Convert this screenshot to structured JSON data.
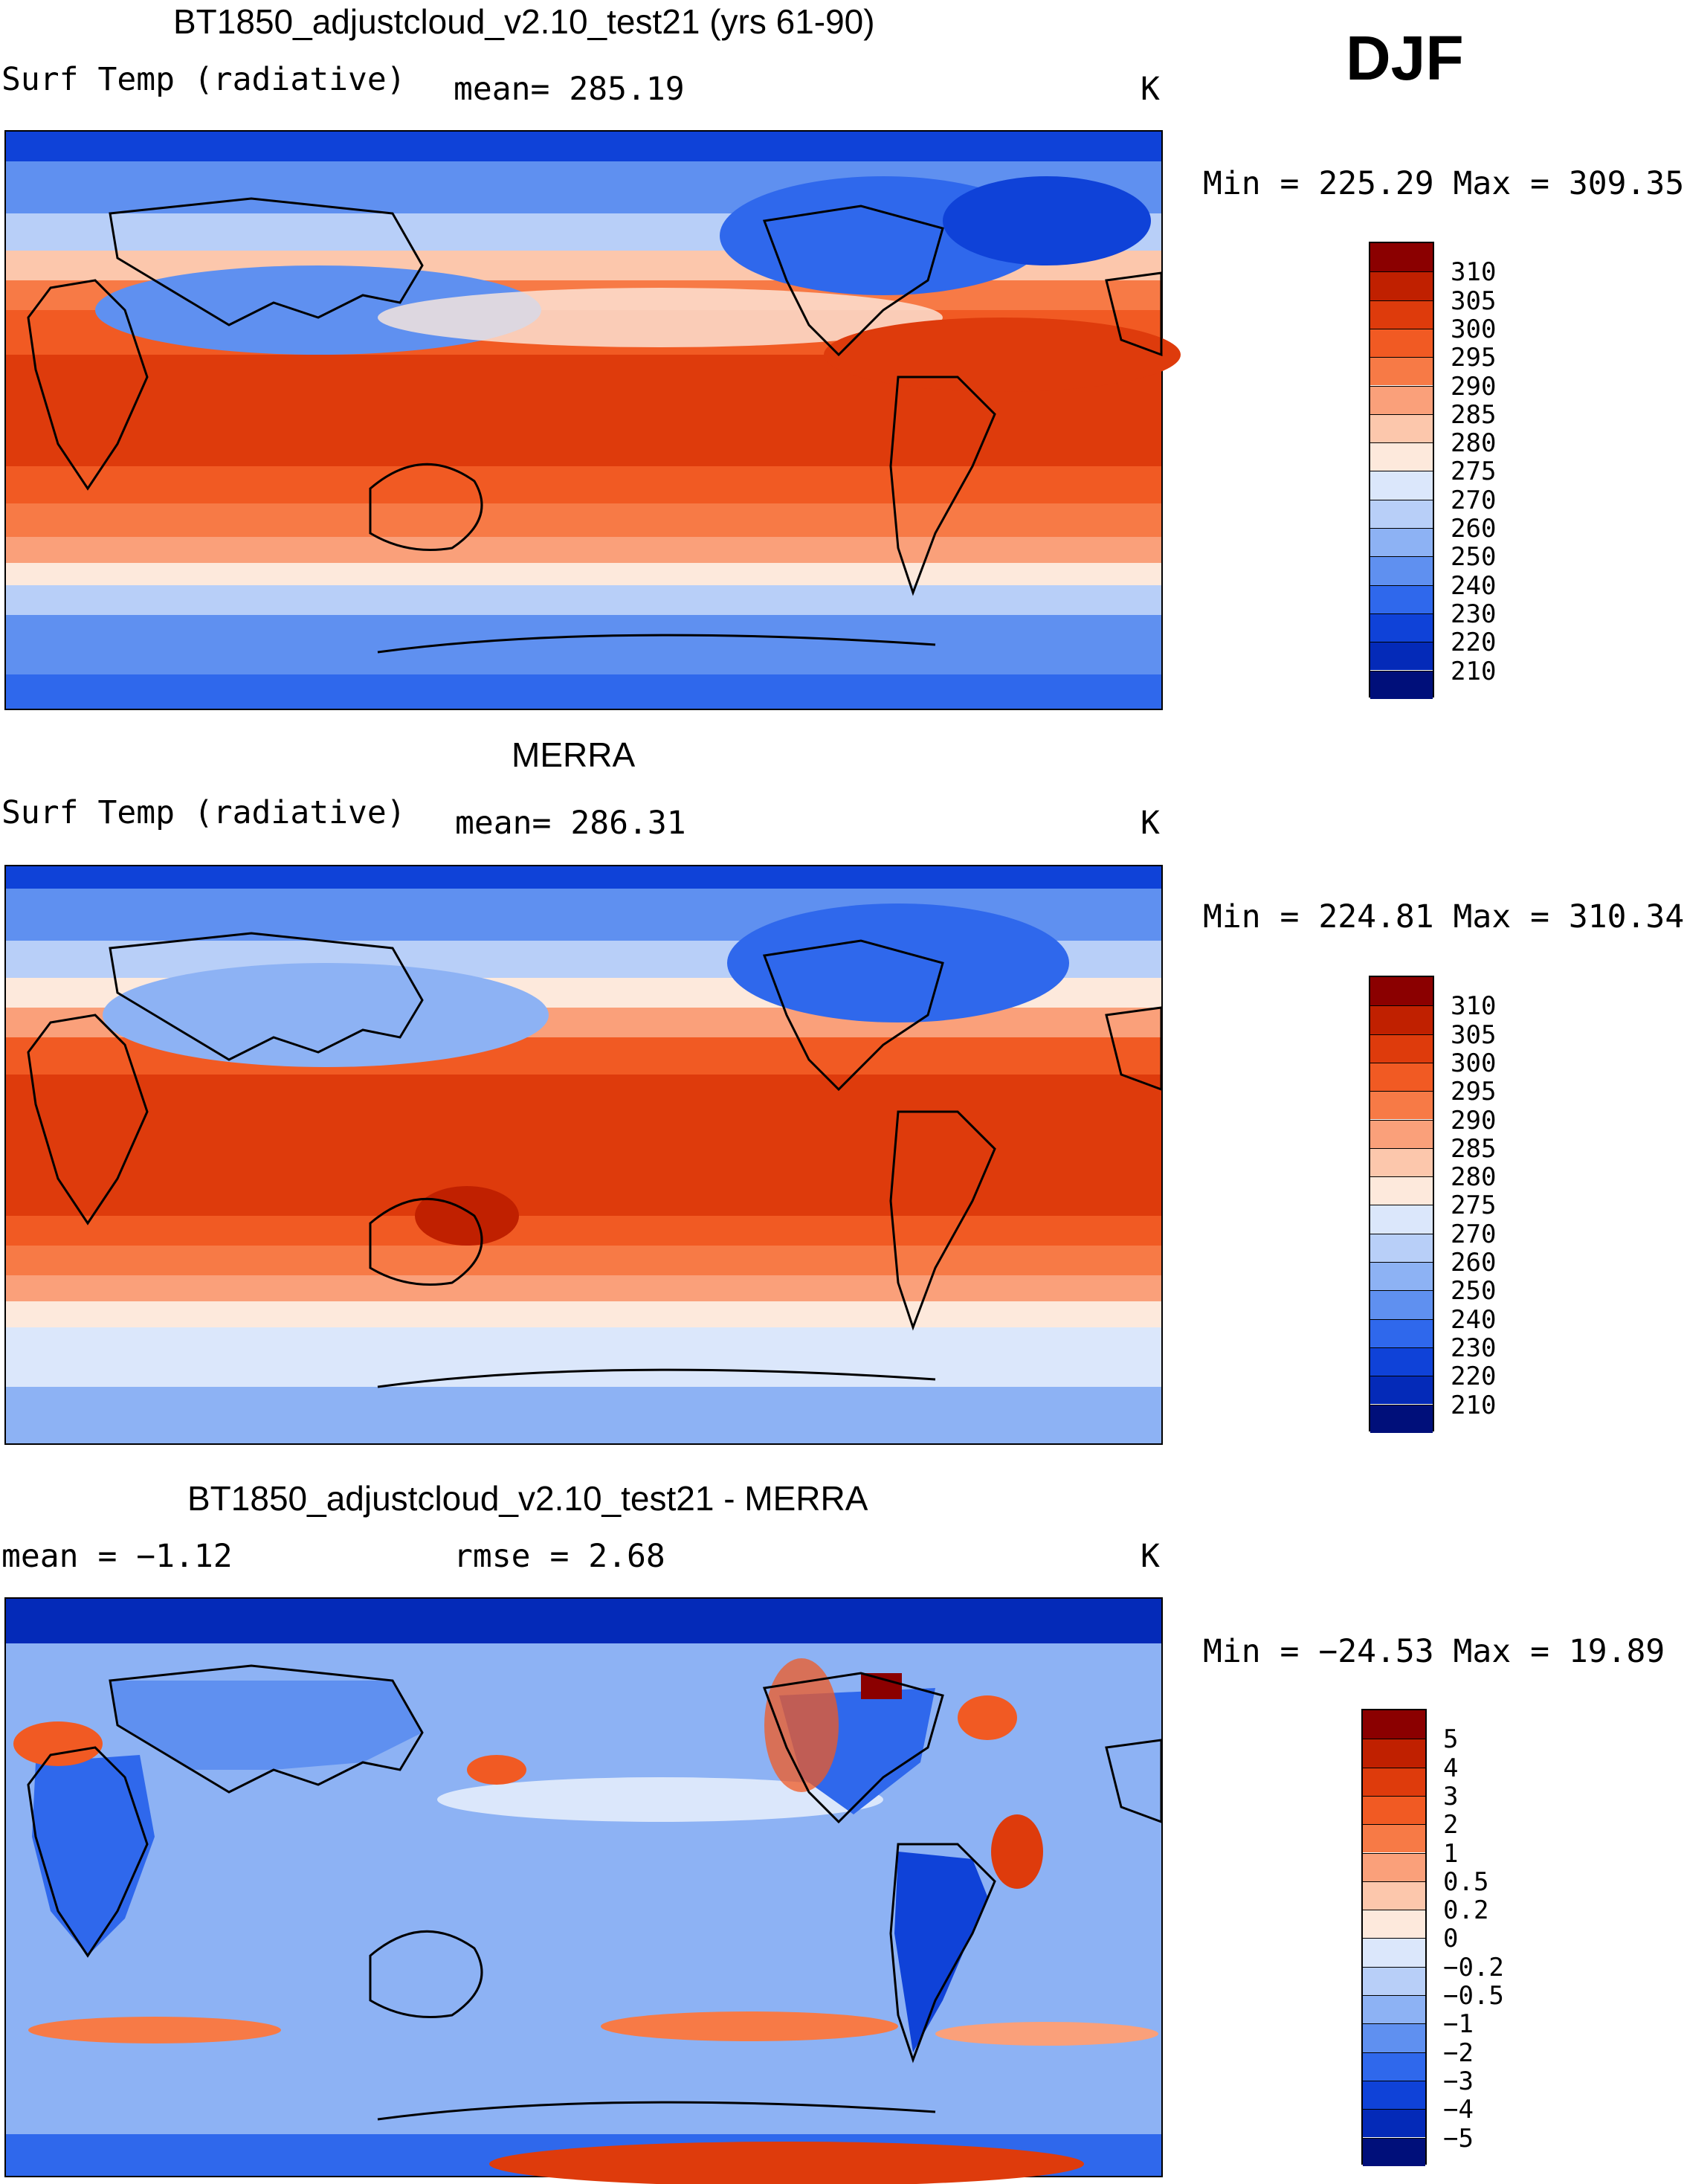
{
  "season": "DJF",
  "panels": [
    {
      "title": "BT1850_adjustcloud_v2.10_test21 (yrs 61-90)",
      "left_text": "Surf Temp (radiative)",
      "mid_text": "mean= 285.19",
      "unit": "K",
      "minmax": "Min = 225.29 Max = 309.35",
      "colorbar": {
        "labels": [
          "310",
          "305",
          "300",
          "295",
          "290",
          "285",
          "280",
          "275",
          "270",
          "260",
          "250",
          "240",
          "230",
          "220",
          "210"
        ],
        "colors": [
          "#8b0000",
          "#c02000",
          "#de3b0c",
          "#f15a23",
          "#f77a46",
          "#faa07a",
          "#fcc7ac",
          "#fde9dc",
          "#dbe7fb",
          "#b8cff8",
          "#8db2f4",
          "#5f90f0",
          "#2f68ec",
          "#0f42d8",
          "#042ab8",
          "#000f7a"
        ]
      }
    },
    {
      "title": "MERRA",
      "left_text": "Surf Temp (radiative)",
      "mid_text": "mean= 286.31",
      "unit": "K",
      "minmax": "Min = 224.81 Max = 310.34",
      "colorbar": {
        "labels": [
          "310",
          "305",
          "300",
          "295",
          "290",
          "285",
          "280",
          "275",
          "270",
          "260",
          "250",
          "240",
          "230",
          "220",
          "210"
        ],
        "colors": [
          "#8b0000",
          "#c02000",
          "#de3b0c",
          "#f15a23",
          "#f77a46",
          "#faa07a",
          "#fcc7ac",
          "#fde9dc",
          "#dbe7fb",
          "#b8cff8",
          "#8db2f4",
          "#5f90f0",
          "#2f68ec",
          "#0f42d8",
          "#042ab8",
          "#000f7a"
        ]
      }
    },
    {
      "title": "BT1850_adjustcloud_v2.10_test21 - MERRA",
      "left_text": "mean =   −1.12",
      "mid_text": "rmse =    2.68",
      "unit": "K",
      "minmax": "Min = −24.53 Max =   19.89",
      "colorbar": {
        "labels": [
          "5",
          "4",
          "3",
          "2",
          "1",
          "0.5",
          "0.2",
          "0",
          "−0.2",
          "−0.5",
          "−1",
          "−2",
          "−3",
          "−4",
          "−5"
        ],
        "colors": [
          "#8b0000",
          "#c02000",
          "#de3b0c",
          "#f15a23",
          "#f77a46",
          "#faa07a",
          "#fcc7ac",
          "#fde9dc",
          "#dbe7fb",
          "#b8cff8",
          "#8db2f4",
          "#5f90f0",
          "#2f68ec",
          "#0f42d8",
          "#042ab8",
          "#000f7a"
        ]
      }
    }
  ]
}
